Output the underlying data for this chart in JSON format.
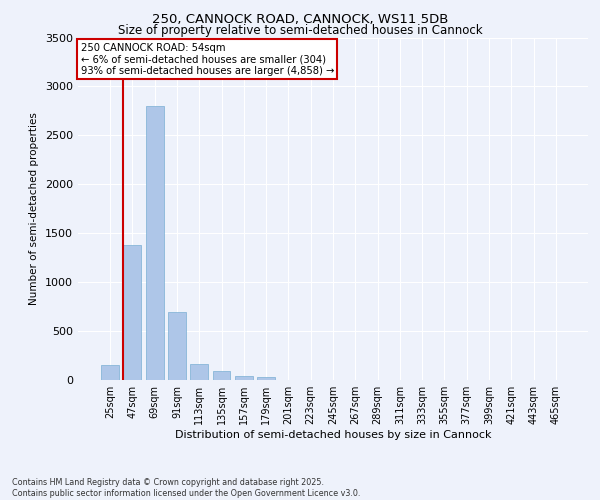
{
  "title_line1": "250, CANNOCK ROAD, CANNOCK, WS11 5DB",
  "title_line2": "Size of property relative to semi-detached houses in Cannock",
  "xlabel": "Distribution of semi-detached houses by size in Cannock",
  "ylabel": "Number of semi-detached properties",
  "categories": [
    "25sqm",
    "47sqm",
    "69sqm",
    "91sqm",
    "113sqm",
    "135sqm",
    "157sqm",
    "179sqm",
    "201sqm",
    "223sqm",
    "245sqm",
    "267sqm",
    "289sqm",
    "311sqm",
    "333sqm",
    "355sqm",
    "377sqm",
    "399sqm",
    "421sqm",
    "443sqm",
    "465sqm"
  ],
  "values": [
    150,
    1380,
    2800,
    700,
    160,
    90,
    40,
    30,
    0,
    0,
    0,
    0,
    0,
    0,
    0,
    0,
    0,
    0,
    0,
    0,
    0
  ],
  "bar_color": "#aec6e8",
  "bar_edge_color": "#7bafd4",
  "vline_color": "#cc0000",
  "annotation_title": "250 CANNOCK ROAD: 54sqm",
  "annotation_line2": "← 6% of semi-detached houses are smaller (304)",
  "annotation_line3": "93% of semi-detached houses are larger (4,858) →",
  "annotation_box_color": "#cc0000",
  "ylim": [
    0,
    3500
  ],
  "yticks": [
    0,
    500,
    1000,
    1500,
    2000,
    2500,
    3000,
    3500
  ],
  "background_color": "#eef2fb",
  "grid_color": "#ffffff",
  "footer_line1": "Contains HM Land Registry data © Crown copyright and database right 2025.",
  "footer_line2": "Contains public sector information licensed under the Open Government Licence v3.0."
}
